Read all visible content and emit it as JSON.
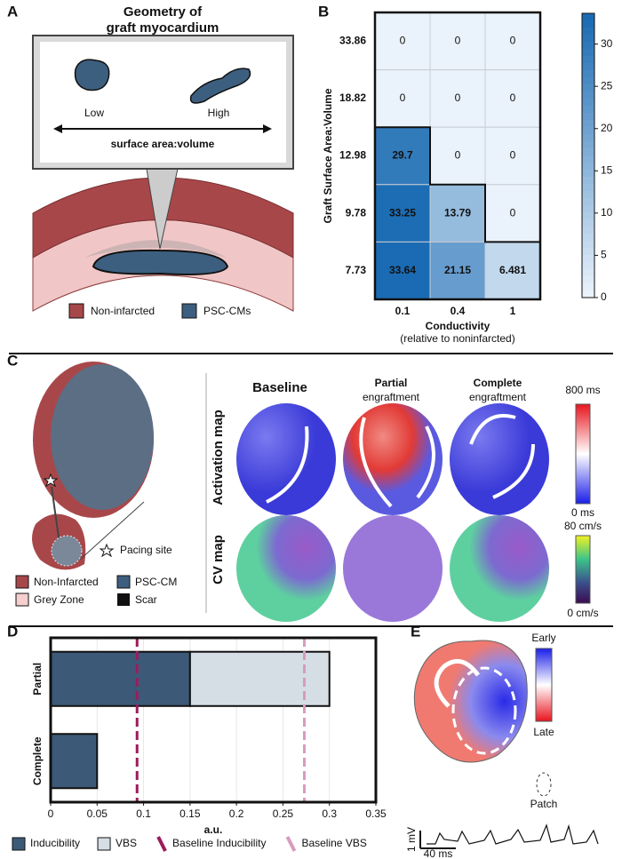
{
  "panel_labels": [
    "A",
    "B",
    "C",
    "D",
    "E"
  ],
  "panel_a": {
    "title": [
      "Geometry of",
      "graft myocardium"
    ],
    "low": "Low",
    "high": "High",
    "axis": "surface area:volume",
    "legend": [
      "Non-infarcted",
      "PSC-CMs"
    ]
  },
  "panel_c": {
    "pacing": "Pacing site",
    "legend": [
      "Non-Infarcted",
      "PSC-CM",
      "Grey Zone",
      "Scar"
    ],
    "columns": [
      {
        "title": "Baseline"
      },
      {
        "title": "Partial",
        "subtitle": "engraftment"
      },
      {
        "title": "Complete",
        "subtitle": "engraftment"
      }
    ],
    "rows": [
      "Activation map",
      "CV map"
    ],
    "activation_scale": [
      "800 ms",
      "0 ms"
    ],
    "cv_scale": [
      "80 cm/s",
      "0 cm/s"
    ]
  },
  "panel_e": {
    "scale": [
      "Early",
      "Late"
    ],
    "patch": "Patch",
    "voltage": "1 mV",
    "time": "40 ms"
  },
  "chart_data": [
    {
      "type": "heatmap",
      "y_label": "Graft Surface Area:Volume",
      "x_label": "Conductivity",
      "x_sublabel": "(relative to noninfarcted)",
      "categories": [
        "0.1",
        "0.4",
        "1"
      ],
      "rows": [
        "33.86",
        "18.82",
        "12.98",
        "9.78",
        "7.73"
      ],
      "values": [
        [
          0,
          0,
          0
        ],
        [
          0,
          0,
          0
        ],
        [
          29.7,
          0,
          0
        ],
        [
          33.25,
          13.79,
          0
        ],
        [
          33.64,
          21.15,
          6.481
        ]
      ],
      "colorlim": [
        0,
        33.64
      ],
      "colorticks": [
        0,
        5,
        10,
        15,
        20,
        25,
        30
      ],
      "colors": [
        "#eaf2fb",
        "#1a6bb3"
      ]
    },
    {
      "type": "bar",
      "orientation": "horizontal",
      "stacked": true,
      "categories": [
        "Partial",
        "Complete"
      ],
      "series": [
        {
          "name": "Inducibility",
          "color": "#3c5a78",
          "values": [
            0.15,
            0.05
          ]
        },
        {
          "name": "VBS",
          "color": "#d5dde5",
          "values": [
            0.15,
            0
          ]
        }
      ],
      "reference_lines": [
        {
          "name": "Baseline Inducibility",
          "value": 0.093,
          "color": "#9b1c5c"
        },
        {
          "name": "Baseline VBS",
          "value": 0.273,
          "color": "#d79bbf"
        }
      ],
      "xlabel": "a.u.",
      "xlim": [
        0,
        0.35
      ],
      "xticks": [
        0,
        0.05,
        0.1,
        0.15,
        0.2,
        0.25,
        0.3,
        0.35
      ],
      "grid": true
    }
  ]
}
